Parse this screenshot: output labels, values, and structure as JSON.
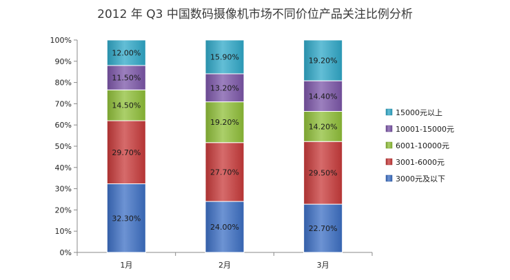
{
  "chart_data": {
    "type": "bar",
    "stacked": true,
    "percent": true,
    "title": "2012 年 Q3 中国数码摄像机市场不同价位产品关注比例分析",
    "categories": [
      "1月",
      "2月",
      "3月"
    ],
    "ylim": [
      0,
      100
    ],
    "ytick_labels": [
      "0%",
      "10%",
      "20%",
      "30%",
      "40%",
      "50%",
      "60%",
      "70%",
      "80%",
      "90%",
      "100%"
    ],
    "grid": false,
    "legend_position": "right",
    "series": [
      {
        "name": "3000元及以下",
        "values": [
          32.3,
          24.0,
          22.7
        ],
        "labels": [
          "32.30%",
          "24.00%",
          "22.70%"
        ],
        "color": "#3c6fc4"
      },
      {
        "name": "3001-6000元",
        "values": [
          29.7,
          27.7,
          29.5
        ],
        "labels": [
          "29.70%",
          "27.70%",
          "29.50%"
        ],
        "color": "#c83a3a"
      },
      {
        "name": "6001-10000元",
        "values": [
          14.5,
          19.2,
          14.2
        ],
        "labels": [
          "14.50%",
          "19.20%",
          "14.20%"
        ],
        "color": "#8fbf38"
      },
      {
        "name": "10001-15000元",
        "values": [
          11.5,
          13.2,
          14.4
        ],
        "labels": [
          "11.50%",
          "13.20%",
          "14.40%"
        ],
        "color": "#7b55a8"
      },
      {
        "name": "15000元以上",
        "values": [
          12.0,
          15.9,
          19.2
        ],
        "labels": [
          "12.00%",
          "15.90%",
          "19.20%"
        ],
        "color": "#2fa8c8"
      }
    ]
  }
}
